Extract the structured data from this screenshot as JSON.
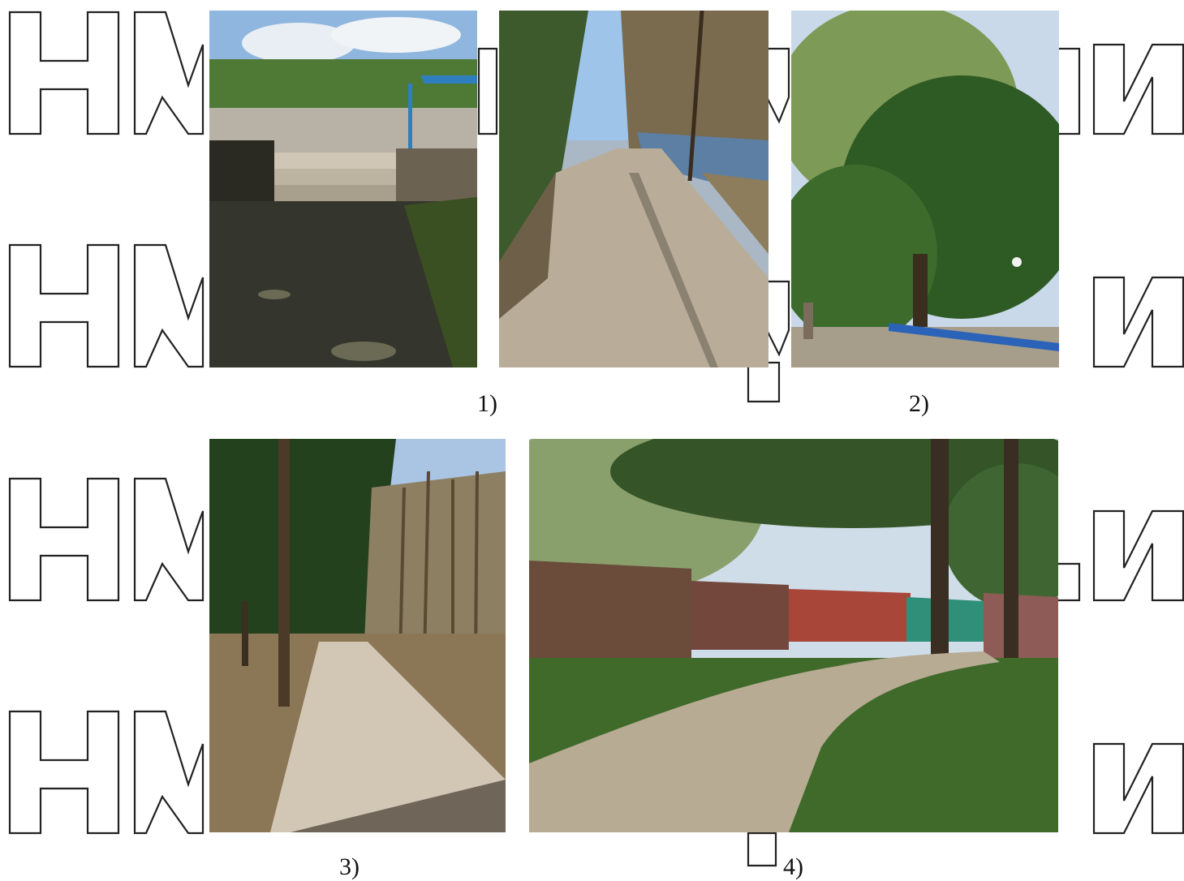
{
  "watermark": {
    "rows": [
      {
        "left": "Ну",
        "mid": "",
        "right": "и"
      },
      {
        "left": "Ну",
        "mid": "",
        "right": "и"
      },
      {
        "left": "Ну",
        "mid": "",
        "right": "и"
      },
      {
        "left": "Ну",
        "mid": "",
        "right": "и"
      }
    ]
  },
  "figures": [
    {
      "caption": "1)",
      "photos": [
        "stone-steps-photo",
        "paved-alley-photo"
      ]
    },
    {
      "caption": "2)",
      "photos": [
        "green-trees-photo"
      ]
    },
    {
      "caption": "3)",
      "photos": [
        "forest-path-photo"
      ]
    },
    {
      "caption": "4)",
      "photos": [
        "dirt-road-garages-photo"
      ]
    }
  ],
  "colors": {
    "sky": "#9cc3ea",
    "foliage": "#3f6b2a",
    "pavement": "#b9ad9a",
    "outline": "#222222"
  }
}
